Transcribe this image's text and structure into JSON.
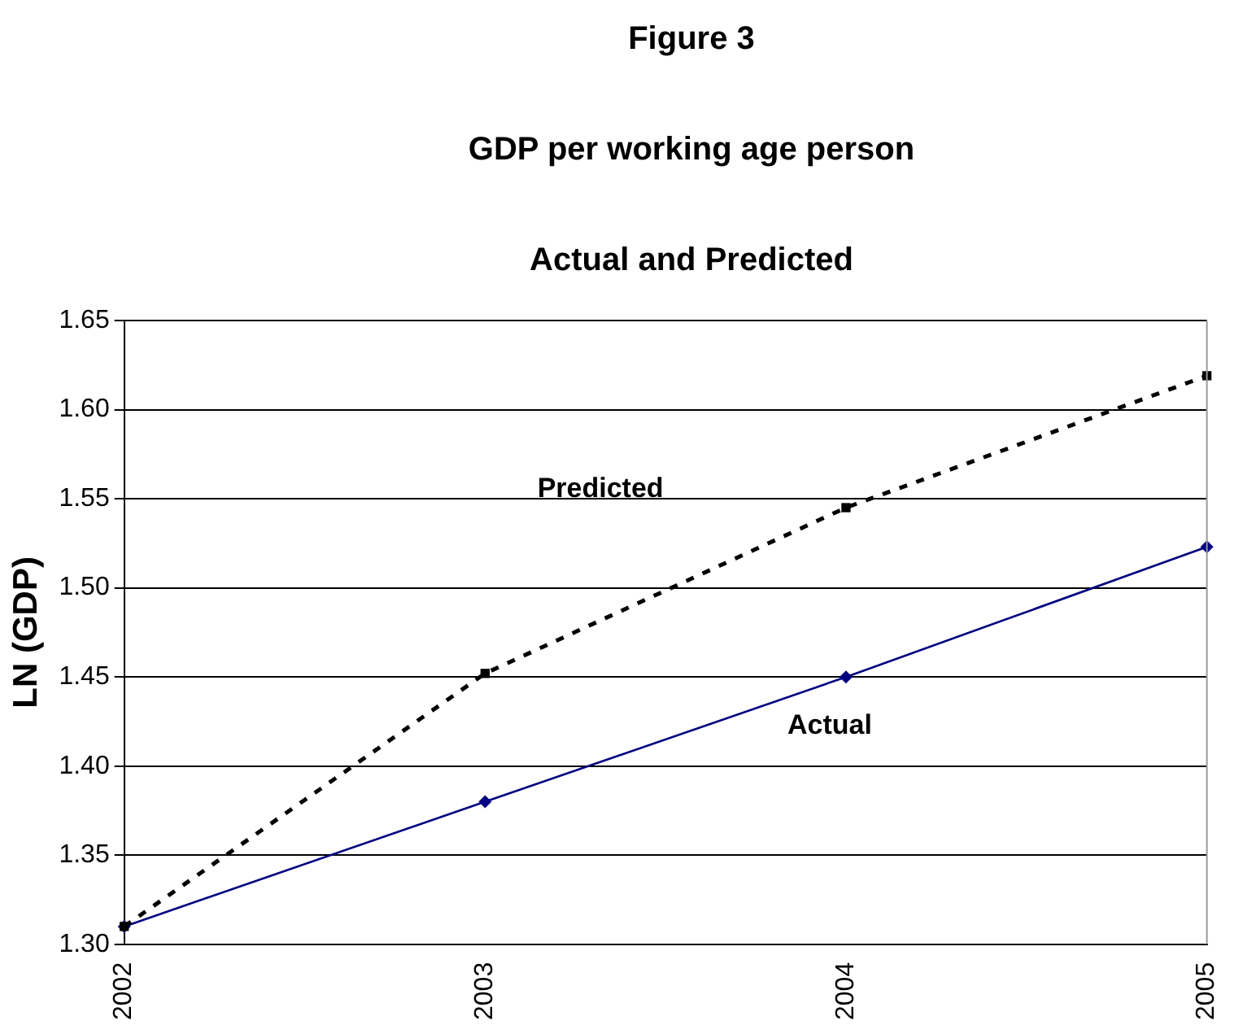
{
  "chart_data": {
    "type": "line",
    "title": "Figure 3",
    "subtitle": "GDP per working age person\nActual and Predicted",
    "ylabel": "LN (GDP)",
    "categories": [
      "2002",
      "2003",
      "2004",
      "2005"
    ],
    "series": [
      {
        "name": "Predicted",
        "color": "#000000",
        "values": [
          1.31,
          1.452,
          1.545,
          1.619
        ],
        "marker": "square",
        "line_style": "dashed"
      },
      {
        "name": "Actual",
        "color": "#000080",
        "values": [
          1.31,
          1.38,
          1.45,
          1.523
        ],
        "marker": "diamond",
        "line_style": "solid"
      }
    ],
    "ylim": [
      1.3,
      1.65
    ],
    "yticks": [
      {
        "value": 1.3,
        "label": "1.30"
      },
      1.35,
      {
        "value": 1.4,
        "label": "1.40"
      },
      1.45,
      {
        "value": 1.5,
        "label": "1.50"
      },
      1.55,
      {
        "value": 1.6,
        "label": "1.60"
      },
      1.65
    ],
    "grid": "y",
    "legend": false
  }
}
